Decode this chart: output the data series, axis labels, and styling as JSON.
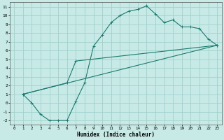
{
  "xlabel": "Humidex (Indice chaleur)",
  "bg_color": "#c8eae6",
  "grid_color": "#a0d0cc",
  "line_color": "#1a7a6e",
  "xlim": [
    -0.5,
    23.5
  ],
  "ylim": [
    -2.5,
    11.5
  ],
  "xticks": [
    0,
    1,
    2,
    3,
    4,
    5,
    6,
    7,
    8,
    9,
    10,
    11,
    12,
    13,
    14,
    15,
    16,
    17,
    18,
    19,
    20,
    21,
    22,
    23
  ],
  "yticks": [
    -2,
    -1,
    0,
    1,
    2,
    3,
    4,
    5,
    6,
    7,
    8,
    9,
    10,
    11
  ],
  "line1_x": [
    1,
    2,
    3,
    4,
    5,
    6,
    7,
    8,
    9,
    10,
    11,
    12,
    13,
    14,
    15,
    16,
    17,
    18,
    19,
    20,
    21,
    22,
    23
  ],
  "line1_y": [
    1,
    0,
    -1.3,
    -2,
    -2,
    -2,
    0.2,
    2.3,
    6.5,
    7.8,
    9.2,
    10.0,
    10.5,
    10.7,
    11.1,
    10.2,
    9.2,
    9.5,
    8.7,
    8.7,
    8.5,
    7.3,
    6.6
  ],
  "line2_x": [
    1,
    6,
    7,
    23
  ],
  "line2_y": [
    1,
    2.3,
    4.8,
    6.6
  ],
  "line3_x": [
    1,
    23
  ],
  "line3_y": [
    1,
    6.6
  ]
}
